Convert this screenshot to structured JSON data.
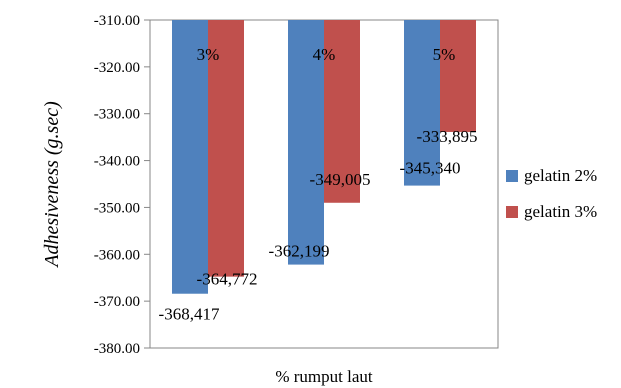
{
  "chart_data": {
    "type": "bar",
    "title": "",
    "xlabel": "% rumput laut",
    "ylabel": "Adhesiveness (g.sec)",
    "ylim": [
      -380,
      -310
    ],
    "yticks": [
      -310,
      -320,
      -330,
      -340,
      -350,
      -360,
      -370,
      -380
    ],
    "ytick_labels": [
      "-310.00",
      "-320.00",
      "-330.00",
      "-340.00",
      "-350.00",
      "-360.00",
      "-370.00",
      "-380.00"
    ],
    "categories": [
      "3%",
      "4%",
      "5%"
    ],
    "series": [
      {
        "name": "gelatin 2%",
        "color": "#4f81bd",
        "values": [
          -368.417,
          -362.199,
          -345.34
        ],
        "labels": [
          "-368,417",
          "-362,199",
          "-345,340"
        ]
      },
      {
        "name": "gelatin 3%",
        "color": "#c0504d",
        "values": [
          -364.772,
          -349.005,
          -333.895
        ],
        "labels": [
          "-364,772",
          "-349,005",
          "-333,895"
        ]
      }
    ],
    "legend": "right",
    "grid": false
  }
}
